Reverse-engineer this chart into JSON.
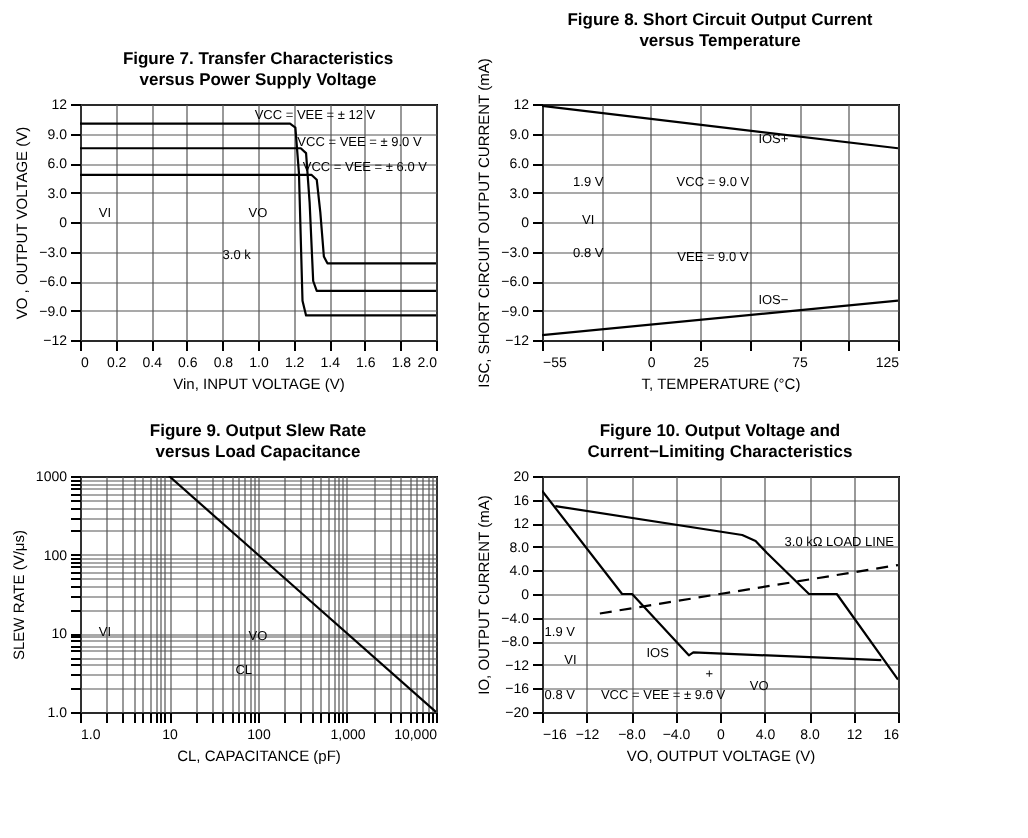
{
  "chart_data": [
    {
      "type": "line",
      "title": "Figure 7. Transfer Characteristics\nversus Power Supply Voltage",
      "xlabel": "Vin, INPUT VOLTAGE (V)",
      "ylabel": "VO , OUTPUT VOLTAGE (V)",
      "xlim": [
        0,
        2
      ],
      "ylim": [
        -12,
        12
      ],
      "xticks": [
        0,
        0.2,
        0.4,
        0.6,
        0.8,
        {
          "value": 1,
          "label": "1.0"
        },
        1.2,
        1.4,
        1.6,
        1.8,
        {
          "value": 2,
          "label": "2.0"
        }
      ],
      "yticks": [
        12,
        {
          "value": 9,
          "label": "9.0"
        },
        {
          "value": 6,
          "label": "6.0"
        },
        {
          "value": 3,
          "label": "3.0"
        },
        0,
        {
          "value": -3,
          "label": "−3.0"
        },
        {
          "value": -6,
          "label": "−6.0"
        },
        {
          "value": -9,
          "label": "−9.0"
        },
        {
          "value": -12,
          "label": "−12"
        }
      ],
      "grid": true,
      "series": [
        {
          "color": "#000000",
          "x": [
            0,
            1.18,
            1.21,
            1.23,
            1.25,
            1.27,
            2.0
          ],
          "values": [
            10,
            10,
            9.6,
            5,
            -8,
            -9.5,
            -9.5
          ]
        },
        {
          "color": "#000000",
          "x": [
            0,
            1.24,
            1.27,
            1.29,
            1.31,
            1.33,
            2.0
          ],
          "values": [
            7.5,
            7.5,
            7,
            2,
            -6,
            -7,
            -7
          ]
        },
        {
          "color": "#000000",
          "x": [
            0,
            1.3,
            1.33,
            1.35,
            1.37,
            1.39,
            2.0
          ],
          "values": [
            4.8,
            4.8,
            4.3,
            1,
            -3.5,
            -4.2,
            -4.2
          ]
        }
      ],
      "annotations": [
        "VCC = VEE = ± 12 V",
        "VCC = VEE = ± 9.0 V",
        "VCC = VEE = ± 6.0 V",
        "VI",
        "VO",
        "3.0 k"
      ]
    },
    {
      "type": "line",
      "title": "Figure 8. Short Circuit Output Current\nversus Temperature",
      "xlabel": "T, TEMPERATURE (°C)",
      "ylabel": "ISC, SHORT CIRCUIT OUTPUT CURRENT (mA)",
      "xlim": [
        -55,
        125
      ],
      "ylim": [
        -12,
        12
      ],
      "xticks": [
        {
          "value": -55,
          "label": "−55"
        },
        {
          "value": -25,
          "label": null
        },
        0,
        25,
        {
          "value": 50,
          "label": null
        },
        75,
        {
          "value": 100,
          "label": null
        },
        125
      ],
      "yticks": [
        12,
        {
          "value": 9,
          "label": "9.0"
        },
        {
          "value": 6,
          "label": "6.0"
        },
        {
          "value": 3,
          "label": "3.0"
        },
        0,
        {
          "value": -3,
          "label": "−3.0"
        },
        {
          "value": -6,
          "label": "−6.0"
        },
        {
          "value": -9,
          "label": "−9.0"
        },
        {
          "value": -12,
          "label": "−12"
        }
      ],
      "grid": true,
      "series": [
        {
          "color": "#000000",
          "x": [
            -55,
            125
          ],
          "values": [
            11.8,
            7.5
          ]
        },
        {
          "color": "#000000",
          "x": [
            -55,
            125
          ],
          "values": [
            -11.5,
            -8
          ]
        }
      ],
      "annotations": [
        "IOS+",
        "IOS−",
        "1.9 V",
        "VI",
        "0.8 V",
        "VCC = 9.0 V",
        "VEE = 9.0 V"
      ]
    },
    {
      "type": "line",
      "title": "Figure 9. Output Slew Rate\nversus Load Capacitance",
      "xlabel": "CL, CAPACITANCE (pF)",
      "ylabel": "SLEW RATE (V/μs)",
      "log": "xy",
      "xlim": [
        1,
        10000
      ],
      "ylim": [
        1,
        1000
      ],
      "xticks": [
        {
          "value": 1,
          "label": "1.0"
        },
        {
          "value": 2,
          "label": null
        },
        {
          "value": 3,
          "label": null
        },
        {
          "value": 4,
          "label": null
        },
        {
          "value": 5,
          "label": null
        },
        {
          "value": 6,
          "label": null
        },
        {
          "value": 7,
          "label": null
        },
        {
          "value": 8,
          "label": null
        },
        {
          "value": 9,
          "label": null
        },
        10,
        {
          "value": 20,
          "label": null
        },
        {
          "value": 30,
          "label": null
        },
        {
          "value": 40,
          "label": null
        },
        {
          "value": 50,
          "label": null
        },
        {
          "value": 60,
          "label": null
        },
        {
          "value": 70,
          "label": null
        },
        {
          "value": 80,
          "label": null
        },
        {
          "value": 90,
          "label": null
        },
        100,
        {
          "value": 200,
          "label": null
        },
        {
          "value": 300,
          "label": null
        },
        {
          "value": 400,
          "label": null
        },
        {
          "value": 500,
          "label": null
        },
        {
          "value": 600,
          "label": null
        },
        {
          "value": 700,
          "label": null
        },
        {
          "value": 800,
          "label": null
        },
        {
          "value": 900,
          "label": null
        },
        {
          "value": 1000,
          "label": "1,000"
        },
        {
          "value": 2000,
          "label": null
        },
        {
          "value": 3000,
          "label": null
        },
        {
          "value": 4000,
          "label": null
        },
        {
          "value": 5000,
          "label": null
        },
        {
          "value": 6000,
          "label": null
        },
        {
          "value": 7000,
          "label": null
        },
        {
          "value": 8000,
          "label": null
        },
        {
          "value": 9000,
          "label": null
        },
        {
          "value": 10000,
          "label": "10,000"
        }
      ],
      "yticks": [
        {
          "value": 1,
          "label": "1.0"
        },
        {
          "value": 2,
          "label": null
        },
        {
          "value": 3,
          "label": null
        },
        {
          "value": 4,
          "label": null
        },
        {
          "value": 5,
          "label": null
        },
        {
          "value": 6,
          "label": null
        },
        {
          "value": 7,
          "label": null
        },
        {
          "value": 8,
          "label": null
        },
        {
          "value": 9,
          "label": null
        },
        10,
        {
          "value": 20,
          "label": null
        },
        {
          "value": 30,
          "label": null
        },
        {
          "value": 40,
          "label": null
        },
        {
          "value": 50,
          "label": null
        },
        {
          "value": 60,
          "label": null
        },
        {
          "value": 70,
          "label": null
        },
        {
          "value": 80,
          "label": null
        },
        {
          "value": 90,
          "label": null
        },
        100,
        {
          "value": 200,
          "label": null
        },
        {
          "value": 300,
          "label": null
        },
        {
          "value": 400,
          "label": null
        },
        {
          "value": 500,
          "label": null
        },
        {
          "value": 600,
          "label": null
        },
        {
          "value": 700,
          "label": null
        },
        {
          "value": 800,
          "label": null
        },
        {
          "value": 900,
          "label": null
        },
        1000
      ],
      "grid": true,
      "series": [
        {
          "color": "#000000",
          "x": [
            10,
            10000
          ],
          "values": [
            1000,
            1
          ]
        }
      ],
      "annotations": [
        "VI",
        "VO",
        "CL"
      ]
    },
    {
      "type": "line",
      "title": "Figure 10. Output Voltage and\nCurrent−Limiting Characteristics",
      "xlabel": "VO, OUTPUT VOLTAGE (V)",
      "ylabel": "IO, OUTPUT CURRENT (mA)",
      "xlim": [
        -16,
        16
      ],
      "ylim": [
        -20,
        20
      ],
      "xticks": [
        {
          "value": -16,
          "label": "−16"
        },
        {
          "value": -12,
          "label": "−12"
        },
        {
          "value": -8,
          "label": "−8.0"
        },
        {
          "value": -4,
          "label": "−4.0"
        },
        0,
        {
          "value": 4,
          "label": "4.0"
        },
        {
          "value": 8,
          "label": "8.0"
        },
        12,
        16
      ],
      "yticks": [
        20,
        16,
        12,
        {
          "value": 8,
          "label": "8.0"
        },
        {
          "value": 4,
          "label": "4.0"
        },
        0,
        {
          "value": -4,
          "label": "−4.0"
        },
        {
          "value": -8,
          "label": "−8.0"
        },
        {
          "value": -12,
          "label": "−12"
        },
        {
          "value": -16,
          "label": "−16"
        },
        {
          "value": -20,
          "label": "−20"
        }
      ],
      "grid": true,
      "series": [
        {
          "color": "#000000",
          "x": [
            -16,
            -8.8,
            -7.9,
            -2.8,
            -2.4,
            14.5
          ],
          "values": [
            17.5,
            0,
            0,
            -10.4,
            -9.9,
            -11.2
          ]
        },
        {
          "color": "#000000",
          "x": [
            -14.8,
            2.0,
            3.2,
            4.2,
            8,
            10.5,
            16
          ],
          "values": [
            14.9,
            10,
            9,
            7,
            0,
            0,
            -14.5
          ]
        },
        {
          "color": "#000000",
          "line_style": "dashed",
          "x": [
            -10.8,
            16
          ],
          "values": [
            -3.3,
            4.9
          ]
        }
      ],
      "annotations": [
        "3.0 kΩ LOAD LINE",
        "IOS",
        "1.9 V",
        "VI",
        "0.8 V",
        "VCC = VEE = ± 9.0 V",
        "VO",
        "+",
        "−"
      ]
    }
  ]
}
